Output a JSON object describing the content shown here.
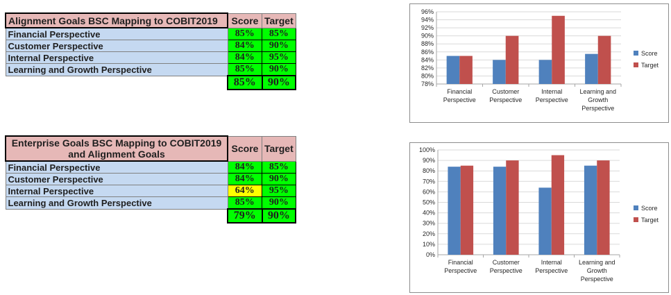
{
  "alignment_table": {
    "title": "Alignment Goals BSC Mapping to COBIT2019",
    "score_header": "Score",
    "target_header": "Target",
    "rows": [
      {
        "label": "Financial Perspective",
        "score": "85%",
        "target": "85%"
      },
      {
        "label": "Customer Perspective",
        "score": "84%",
        "target": "90%"
      },
      {
        "label": "Internal Perspective",
        "score": "84%",
        "target": "95%"
      },
      {
        "label": "Learning and Growth Perspective",
        "score": "85%",
        "target": "90%"
      }
    ],
    "total_score": "85%",
    "total_target": "90%"
  },
  "enterprise_table": {
    "title": "Enterprise Goals BSC  Mapping to COBIT2019 and Alignment Goals",
    "score_header": "Score",
    "target_header": "Target",
    "rows": [
      {
        "label": "Financial Perspective",
        "score": "84%",
        "target": "85%"
      },
      {
        "label": "Customer Perspective",
        "score": "84%",
        "target": "90%"
      },
      {
        "label": "Internal Perspective",
        "score": "64%",
        "target": "95%"
      },
      {
        "label": "Learning and Growth Perspective",
        "score": "85%",
        "target": "90%"
      }
    ],
    "total_score": "79%",
    "total_target": "90%"
  },
  "colors": {
    "score": "#4f81bd",
    "target": "#c0504d",
    "good_cell": "#00ff00",
    "warn_cell": "#ffff00",
    "header_cell": "#e6b8b7",
    "perspective_cell": "#c5d9f1"
  },
  "chart_data": [
    {
      "type": "bar",
      "categories": [
        [
          "Financial",
          "Perspective"
        ],
        [
          "Customer",
          "Perspective"
        ],
        [
          "Internal",
          "Perspective"
        ],
        [
          "Learning and",
          "Growth",
          "Perspective"
        ]
      ],
      "series": [
        {
          "name": "Score",
          "values": [
            85,
            84,
            84,
            85.5
          ]
        },
        {
          "name": "Target",
          "values": [
            85,
            90,
            95,
            90
          ]
        }
      ],
      "ylim": [
        78,
        96
      ],
      "ytick_step": 2,
      "yticks": [
        "78%",
        "80%",
        "82%",
        "84%",
        "86%",
        "88%",
        "90%",
        "92%",
        "94%",
        "96%"
      ],
      "grid": true,
      "legend": "right"
    },
    {
      "type": "bar",
      "categories": [
        [
          "Financial",
          "Perspective"
        ],
        [
          "Customer",
          "Perspective"
        ],
        [
          "Internal",
          "Perspective"
        ],
        [
          "Learning and",
          "Growth",
          "Perspective"
        ]
      ],
      "series": [
        {
          "name": "Score",
          "values": [
            84,
            84,
            64,
            85
          ]
        },
        {
          "name": "Target",
          "values": [
            85,
            90,
            95,
            90
          ]
        }
      ],
      "ylim": [
        0,
        100
      ],
      "ytick_step": 10,
      "yticks": [
        "0%",
        "10%",
        "20%",
        "30%",
        "40%",
        "50%",
        "60%",
        "70%",
        "80%",
        "90%",
        "100%"
      ],
      "grid": true,
      "legend": "right"
    }
  ]
}
